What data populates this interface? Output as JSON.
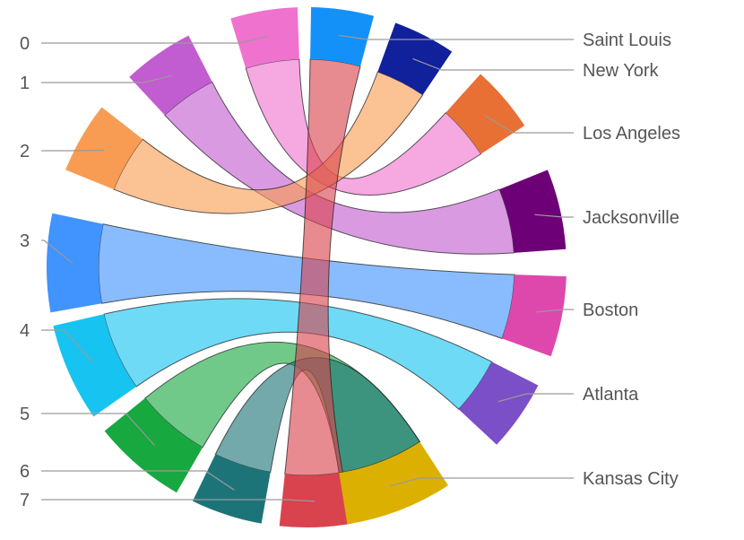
{
  "chart_data": {
    "type": "chord",
    "nodes_left": [
      {
        "id": "0",
        "label": "0",
        "color": "#f072cf"
      },
      {
        "id": "1",
        "label": "1",
        "color": "#c25cd1"
      },
      {
        "id": "2",
        "label": "2",
        "color": "#f99c53"
      },
      {
        "id": "3",
        "label": "3",
        "color": "#4193fd"
      },
      {
        "id": "4",
        "label": "4",
        "color": "#17c3f0"
      },
      {
        "id": "5",
        "label": "5",
        "color": "#18a840"
      },
      {
        "id": "6",
        "label": "6",
        "color": "#1d7478"
      },
      {
        "id": "7",
        "label": "7",
        "color": "#d8434e"
      }
    ],
    "nodes_right": [
      {
        "id": "saint-louis",
        "label": "Saint Louis",
        "color": "#1491f9"
      },
      {
        "id": "new-york",
        "label": "New York",
        "color": "#11209b"
      },
      {
        "id": "los-angeles",
        "label": "Los Angeles",
        "color": "#e87035"
      },
      {
        "id": "jacksonville",
        "label": "Jacksonville",
        "color": "#6d0077"
      },
      {
        "id": "boston",
        "label": "Boston",
        "color": "#de48ac"
      },
      {
        "id": "atlanta",
        "label": "Atlanta",
        "color": "#7b4fc7"
      },
      {
        "id": "kansas-city",
        "label": "Kansas City",
        "color": "#dbb000"
      }
    ],
    "links": [
      {
        "source": "0",
        "target": "los-angeles",
        "value": 1,
        "color": "#f072cf"
      },
      {
        "source": "1",
        "target": "jacksonville",
        "value": 1,
        "color": "#c25cd1"
      },
      {
        "source": "2",
        "target": "new-york",
        "value": 1,
        "color": "#f99c53"
      },
      {
        "source": "3",
        "target": "boston",
        "value": 1,
        "color": "#4193fd"
      },
      {
        "source": "4",
        "target": "atlanta",
        "value": 1,
        "color": "#17c3f0"
      },
      {
        "source": "5",
        "target": "kansas-city",
        "value": 1,
        "color": "#18a840"
      },
      {
        "source": "6",
        "target": "kansas-city",
        "value": 1,
        "color": "#1d7478"
      },
      {
        "source": "7",
        "target": "saint-louis",
        "value": 1,
        "color": "#d8434e"
      }
    ]
  }
}
